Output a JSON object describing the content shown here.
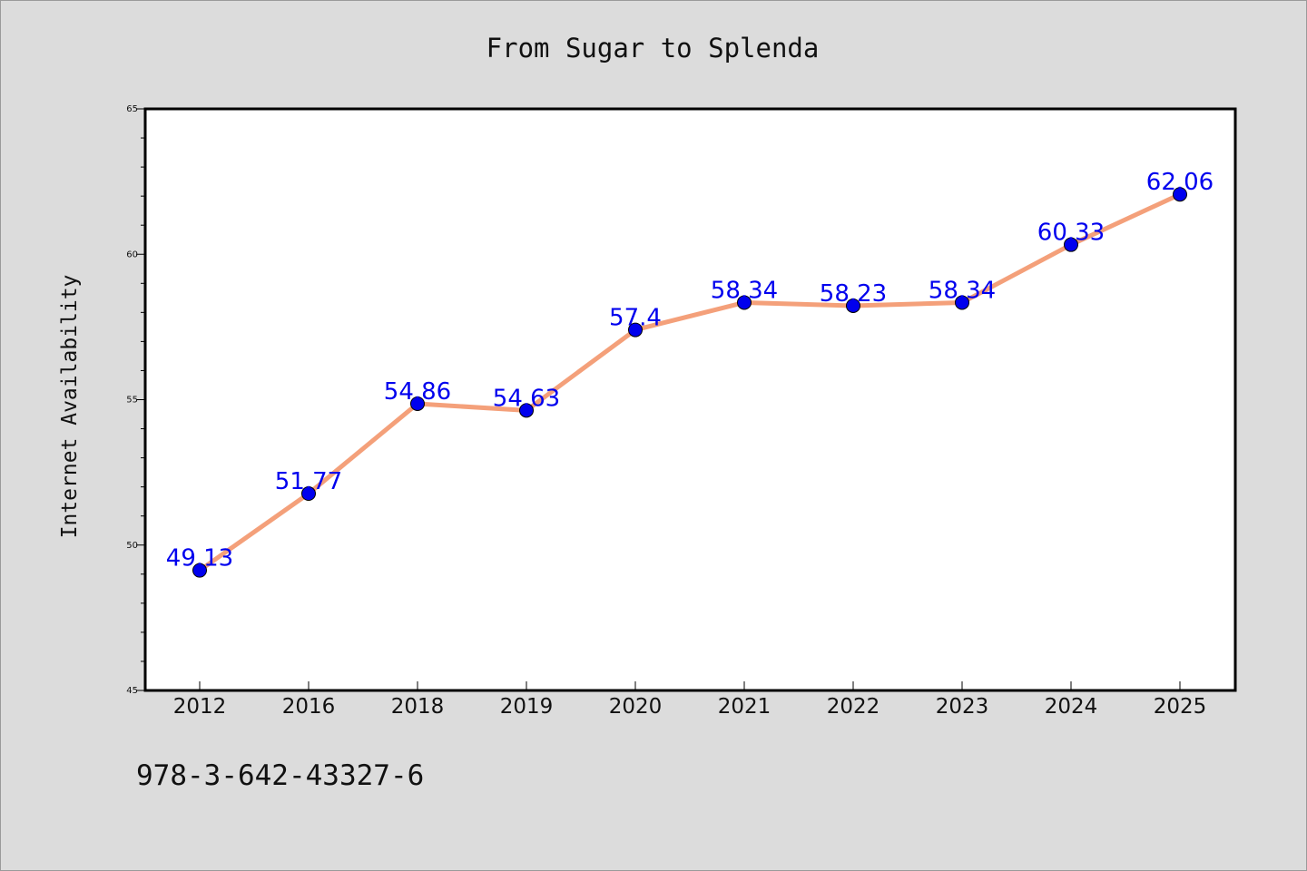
{
  "chart_data": {
    "type": "line",
    "title": "From Sugar to Splenda",
    "xlabel": "",
    "ylabel": "Internet Availability",
    "categories": [
      "2012",
      "2016",
      "2018",
      "2019",
      "2020",
      "2021",
      "2022",
      "2023",
      "2024",
      "2025"
    ],
    "series": [
      {
        "values": [
          49.13,
          51.77,
          54.86,
          54.63,
          57.4,
          58.34,
          58.23,
          58.34,
          60.33,
          62.06
        ],
        "labels": [
          "49.13",
          "51.77",
          "54.86",
          "54.63",
          "57.4",
          "58.34",
          "58.23",
          "58.34",
          "60.33",
          "62.06"
        ],
        "line_color": "#f4a07a",
        "marker_color": "#0000ee",
        "label_color": "#0000ee"
      }
    ],
    "ylim": [
      45,
      65
    ],
    "yticks": [
      "45",
      "50",
      "55",
      "60",
      "65"
    ],
    "grid": false,
    "legend": "none"
  },
  "footer_text": "978-3-642-43327-6"
}
